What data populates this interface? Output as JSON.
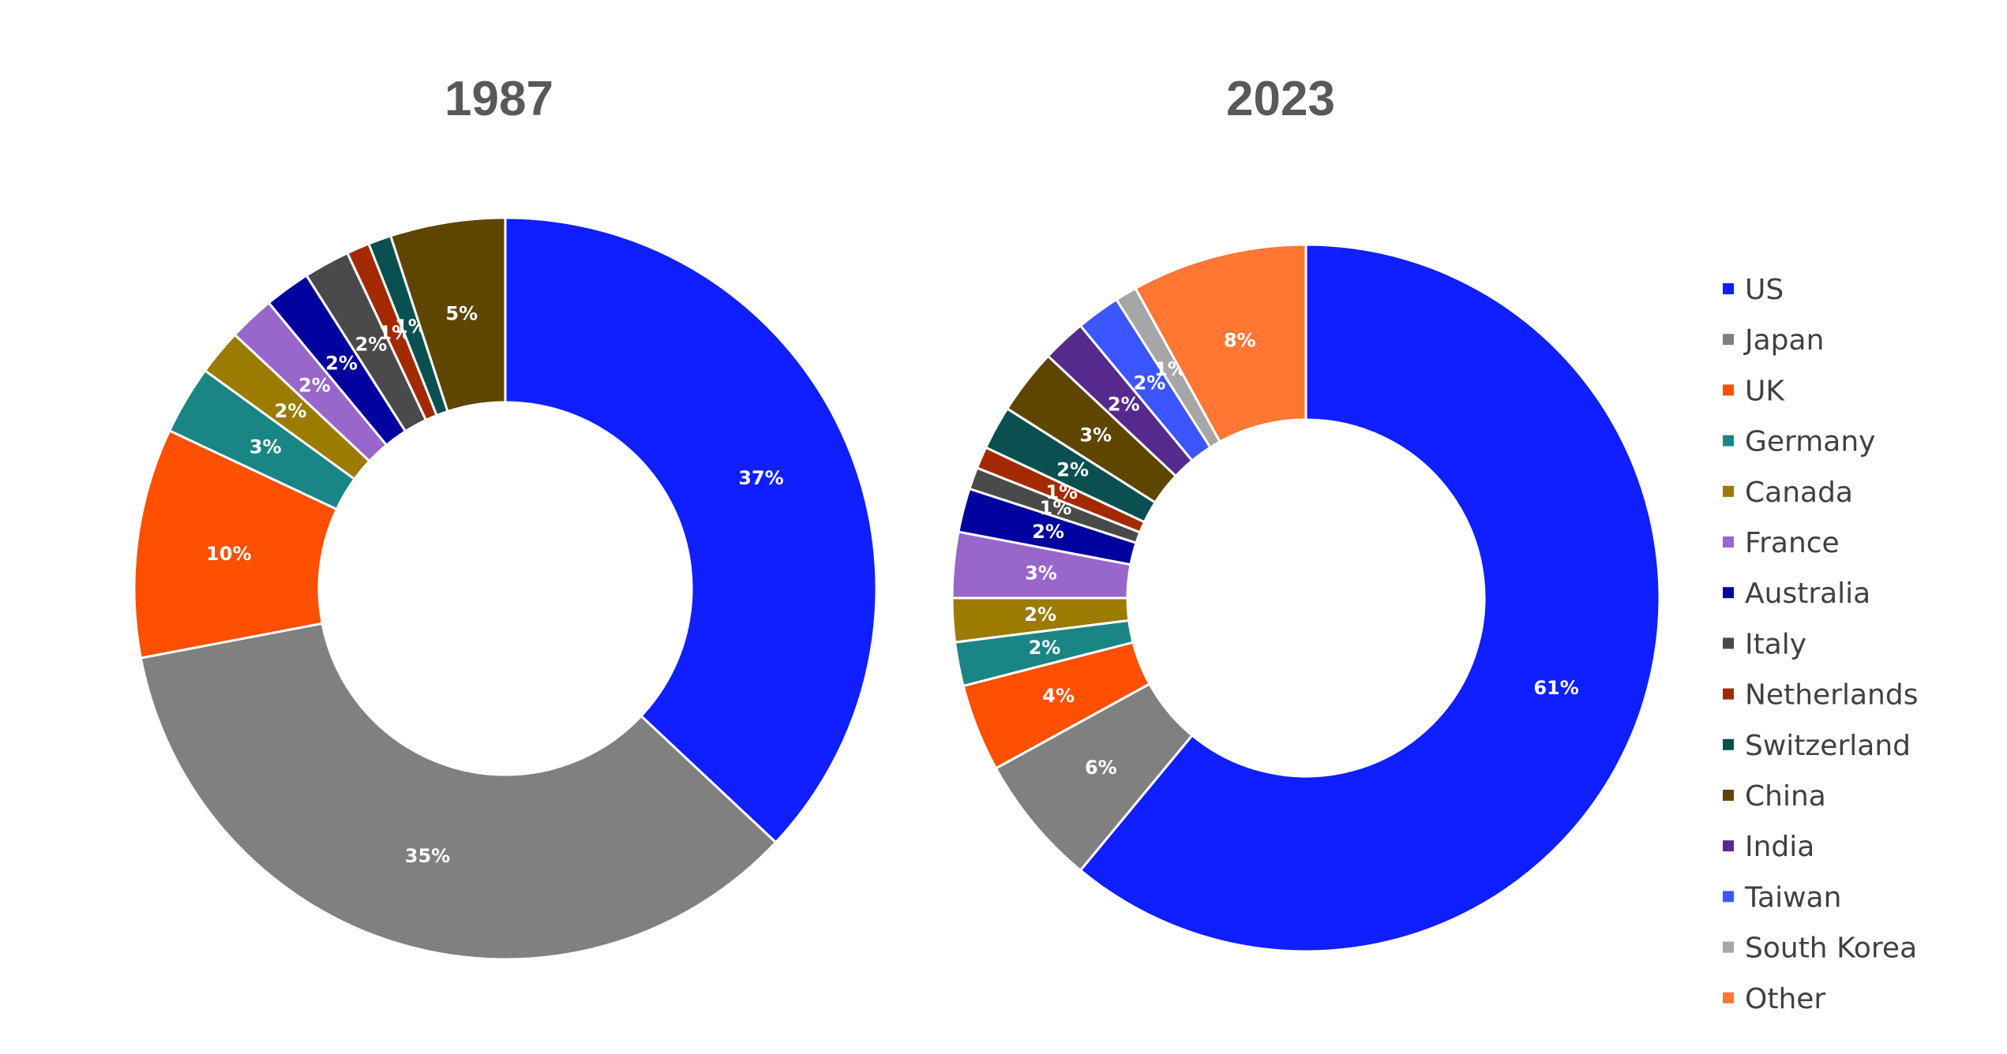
{
  "chart_data": [
    {
      "type": "pie",
      "variant": "donut",
      "title": "1987",
      "categories": [
        "US",
        "Japan",
        "UK",
        "Germany",
        "Canada",
        "France",
        "Australia",
        "Italy",
        "Netherlands",
        "Switzerland",
        "China",
        "India",
        "Taiwan",
        "South Korea",
        "Other"
      ],
      "values": [
        37,
        35,
        10,
        3,
        2,
        2,
        2,
        2,
        1,
        1,
        5,
        0,
        0,
        0,
        0
      ],
      "labels": [
        "37%",
        "35%",
        "10%",
        "3%",
        "2%",
        "2%",
        "2%",
        "2%",
        "1%",
        "1%",
        "5%",
        "",
        "",
        "",
        ""
      ]
    },
    {
      "type": "pie",
      "variant": "donut",
      "title": "2023",
      "categories": [
        "US",
        "Japan",
        "UK",
        "Germany",
        "Canada",
        "France",
        "Australia",
        "Italy",
        "Netherlands",
        "Switzerland",
        "China",
        "India",
        "Taiwan",
        "South Korea",
        "Other"
      ],
      "values": [
        61,
        6,
        4,
        2,
        2,
        3,
        2,
        1,
        1,
        2,
        3,
        2,
        2,
        1,
        8
      ],
      "labels": [
        "61%",
        "6%",
        "4%",
        "2%",
        "2%",
        "3%",
        "2%",
        "1%",
        "1%",
        "2%",
        "3%",
        "2%",
        "2%",
        "1%",
        "8%"
      ]
    }
  ],
  "legend": {
    "position": "right",
    "items": [
      {
        "label": "US",
        "color": "#0f1fff"
      },
      {
        "label": "Japan",
        "color": "#808080"
      },
      {
        "label": "UK",
        "color": "#ff4f00"
      },
      {
        "label": "Germany",
        "color": "#1a8585"
      },
      {
        "label": "Canada",
        "color": "#9b7b00"
      },
      {
        "label": "France",
        "color": "#9966cc"
      },
      {
        "label": "Australia",
        "color": "#00009e"
      },
      {
        "label": "Italy",
        "color": "#4a4a4a"
      },
      {
        "label": "Netherlands",
        "color": "#a32a00"
      },
      {
        "label": "Switzerland",
        "color": "#0a5050"
      },
      {
        "label": "China",
        "color": "#5e4500"
      },
      {
        "label": "India",
        "color": "#552a8c"
      },
      {
        "label": "Taiwan",
        "color": "#3b55ff"
      },
      {
        "label": "South Korea",
        "color": "#a6a6a6"
      },
      {
        "label": "Other",
        "color": "#ff7733"
      }
    ]
  }
}
